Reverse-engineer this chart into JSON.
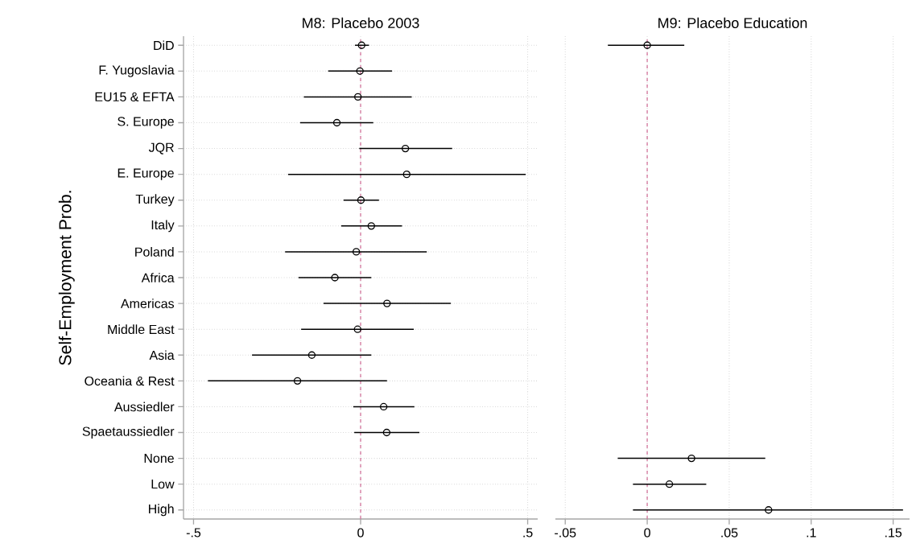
{
  "chart_data": [
    {
      "type": "scatter",
      "orientation": "horizontal",
      "title": "M8: Placebo 2003",
      "ylabel": "Self-Employment Prob.",
      "categories": [
        "DiD",
        "F. Yugoslavia",
        "EU15 & EFTA",
        "S. Europe",
        "JQR",
        "E. Europe",
        "Turkey",
        "Italy",
        "Poland",
        "Africa",
        "Americas",
        "Middle East",
        "Asia",
        "Oceania & Rest",
        "Aussiedler",
        "Spaetaussiedler",
        "None",
        "Low",
        "High"
      ],
      "values": [
        0.003,
        -0.002,
        -0.008,
        -0.071,
        0.134,
        0.138,
        0.001,
        0.032,
        -0.013,
        -0.077,
        0.079,
        -0.009,
        -0.146,
        -0.189,
        0.069,
        0.078,
        null,
        null,
        null
      ],
      "errors": [
        [
          -0.017,
          0.025
        ],
        [
          -0.097,
          0.094
        ],
        [
          -0.17,
          0.153
        ],
        [
          -0.181,
          0.038
        ],
        [
          -0.004,
          0.274
        ],
        [
          -0.217,
          0.494
        ],
        [
          -0.051,
          0.055
        ],
        [
          -0.058,
          0.124
        ],
        [
          -0.226,
          0.198
        ],
        [
          -0.186,
          0.032
        ],
        [
          -0.111,
          0.27
        ],
        [
          -0.178,
          0.159
        ],
        [
          -0.325,
          0.032
        ],
        [
          -0.457,
          0.079
        ],
        [
          -0.022,
          0.161
        ],
        [
          -0.019,
          0.176
        ],
        null,
        null,
        null
      ],
      "color": "#000000",
      "marker": "circle",
      "grid": true,
      "xlim": [
        -0.53,
        0.53
      ],
      "xticks": [
        {
          "value": -0.5,
          "label": "-.5"
        },
        0,
        {
          "value": 0.5,
          "label": ".5"
        }
      ],
      "ref_lines": [
        {
          "axis": "x",
          "value": 0,
          "color": "#d5789f",
          "line_style": "dashed"
        }
      ]
    },
    {
      "type": "scatter",
      "orientation": "horizontal",
      "title": "M9: Placebo Education",
      "categories": [
        null,
        null,
        null,
        null,
        null,
        null,
        null,
        null,
        null,
        null,
        null,
        null,
        null,
        null,
        null,
        null,
        null,
        null,
        null
      ],
      "values": [
        0.0,
        null,
        null,
        null,
        null,
        null,
        null,
        null,
        null,
        null,
        null,
        null,
        null,
        null,
        null,
        null,
        0.027,
        0.0135,
        0.074
      ],
      "errors": [
        [
          -0.024,
          0.0226
        ],
        null,
        null,
        null,
        null,
        null,
        null,
        null,
        null,
        null,
        null,
        null,
        null,
        null,
        null,
        null,
        [
          -0.018,
          0.072
        ],
        [
          -0.0087,
          0.036
        ],
        [
          -0.0087,
          0.156
        ]
      ],
      "color": "#000000",
      "marker": "circle",
      "grid": true,
      "tick_labels": "x",
      "xlim": [
        -0.056,
        0.16
      ],
      "xticks": [
        {
          "value": -0.05,
          "label": "-.05"
        },
        0,
        {
          "value": 0.05,
          "label": ".05"
        },
        {
          "value": 0.1,
          "label": ".1"
        },
        {
          "value": 0.15,
          "label": ".15"
        }
      ],
      "ref_lines": [
        {
          "axis": "x",
          "value": 0,
          "color": "#d5789f",
          "line_style": "dashed"
        }
      ]
    }
  ]
}
